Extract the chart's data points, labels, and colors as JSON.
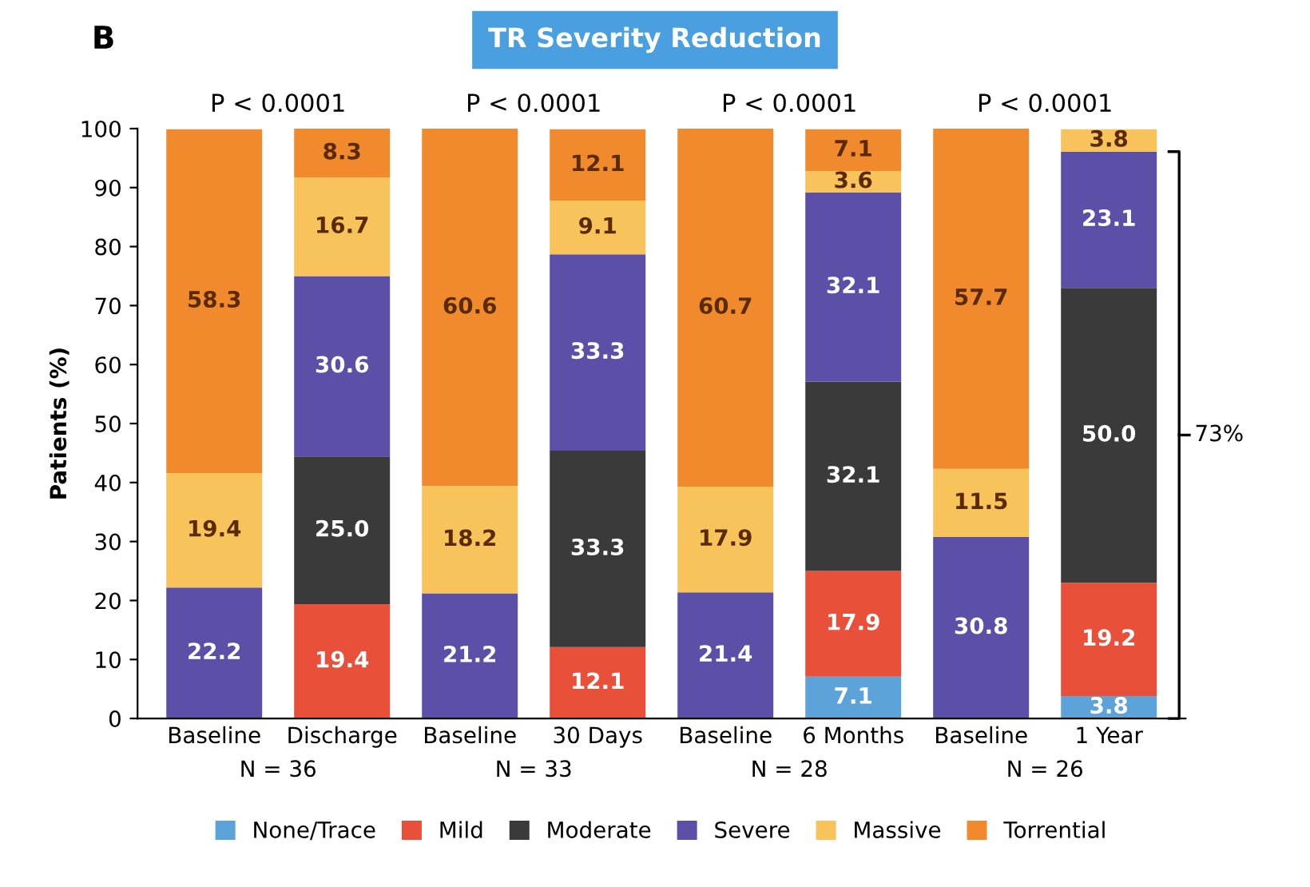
{
  "chart_data": {
    "type": "bar",
    "stacked": true,
    "title": "TR Severity Reduction",
    "ylabel": "Patients (%)",
    "categories": [
      "Baseline",
      "Discharge",
      "Baseline",
      "30 Days",
      "Baseline",
      "6 Months",
      "Baseline",
      "1 Year"
    ],
    "series": [
      {
        "name": "None/Trace",
        "color": "#5ba3d9",
        "values": [
          null,
          null,
          null,
          null,
          null,
          7.1,
          null,
          3.8
        ]
      },
      {
        "name": "Mild",
        "color": "#e8503a",
        "values": [
          null,
          19.4,
          null,
          12.1,
          null,
          17.9,
          null,
          19.2
        ]
      },
      {
        "name": "Moderate",
        "color": "#3a3a3a",
        "values": [
          null,
          25.0,
          null,
          33.3,
          null,
          32.1,
          null,
          50.0
        ],
        "value_labels": [
          null,
          "25.0",
          null,
          "33.3",
          null,
          "32.1",
          null,
          "50.0"
        ]
      },
      {
        "name": "Severe",
        "color": "#5b4fa8",
        "values": [
          22.2,
          30.6,
          21.2,
          33.3,
          21.4,
          32.1,
          30.8,
          23.1
        ]
      },
      {
        "name": "Massive",
        "color": "#f8c35a",
        "values": [
          19.4,
          16.7,
          18.2,
          9.1,
          17.9,
          3.6,
          11.5,
          3.8
        ]
      },
      {
        "name": "Torrential",
        "color": "#f08a2c",
        "values": [
          58.3,
          8.3,
          60.6,
          12.1,
          60.7,
          7.1,
          57.7,
          null
        ]
      }
    ],
    "data_labels": true,
    "ylim": [
      0,
      100
    ],
    "yticks": [
      0,
      10,
      20,
      30,
      40,
      50,
      60,
      70,
      80,
      90,
      100
    ],
    "grid": false,
    "legend": "bottom",
    "annotations": [
      "P < 0.0001",
      "P < 0.0001",
      "P < 0.0001",
      "P < 0.0001",
      "N = 36",
      "N = 33",
      "N = 28",
      "N = 26",
      "B",
      "73%"
    ]
  }
}
